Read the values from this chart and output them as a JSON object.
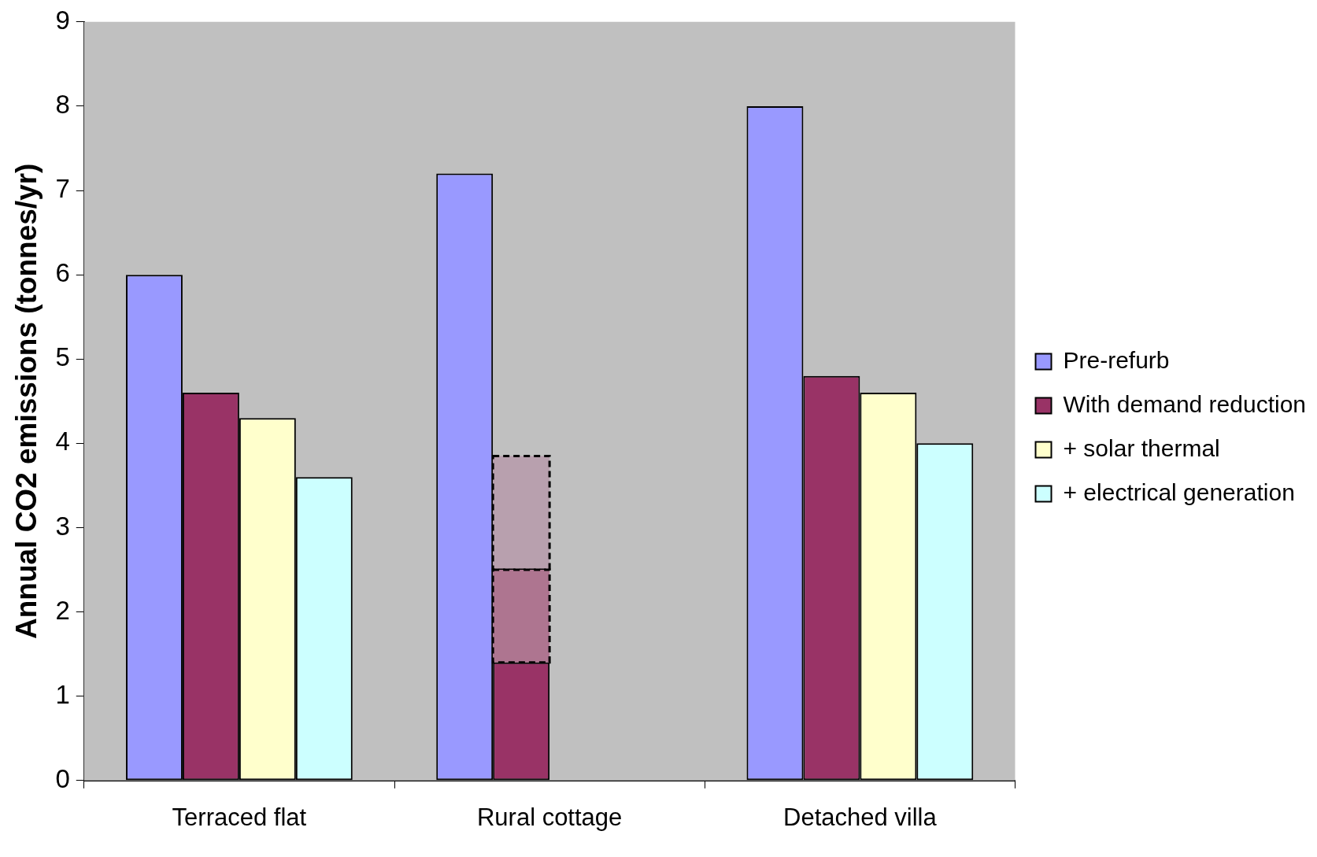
{
  "chart_data": {
    "type": "bar",
    "ylabel": "Annual CO2 emissions (tonnes/yr)",
    "categories": [
      "Terraced flat",
      "Rural cottage",
      "Detached villa"
    ],
    "series": [
      {
        "name": "Pre-refurb",
        "color": "#9999ff",
        "values": [
          6.0,
          7.2,
          8.0
        ]
      },
      {
        "name": "With demand reduction",
        "color": "#993366",
        "values": [
          4.6,
          1.4,
          4.8
        ]
      },
      {
        "name": "+ solar thermal",
        "color": "#ffffcc",
        "values": [
          4.3,
          null,
          4.6
        ]
      },
      {
        "name": "+ electrical generation",
        "color": "#ccffff",
        "values": [
          3.6,
          null,
          4.0
        ]
      },
      {
        "color": "#ae7590",
        "values": [
          null,
          1.1,
          null
        ],
        "base": [
          null,
          1.4,
          null
        ],
        "line_style": "dashed"
      },
      {
        "color": "#b8a0ae",
        "values": [
          null,
          1.35,
          null
        ],
        "base": [
          null,
          2.5,
          null
        ],
        "line_style": "dashed"
      }
    ],
    "ylim": [
      0,
      9
    ],
    "yticks": [
      0,
      1,
      2,
      3,
      4,
      5,
      6,
      7,
      8,
      9
    ],
    "grid": false,
    "legend": "right"
  }
}
